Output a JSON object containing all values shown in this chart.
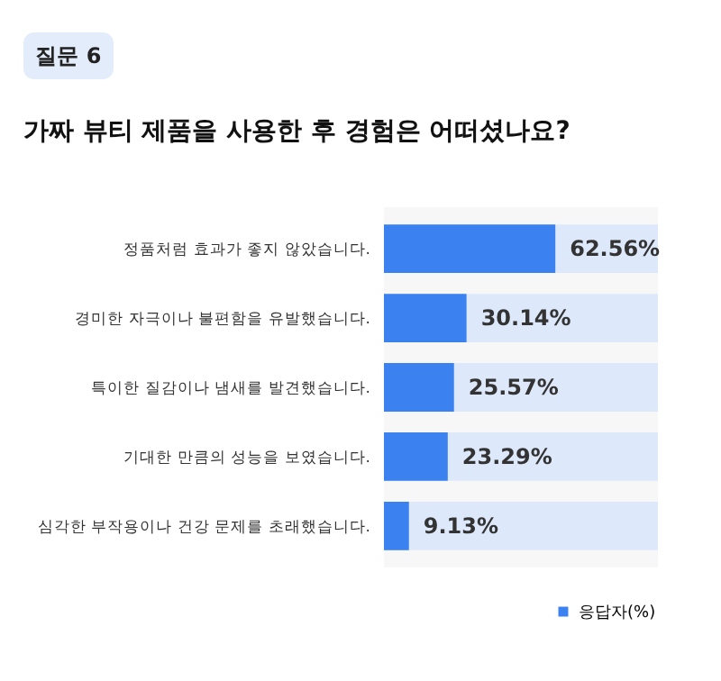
{
  "chart_data": {
    "type": "bar",
    "orientation": "horizontal",
    "title": "가짜 뷰티 제품을 사용한 후 경험은 어떠셨나요?",
    "annotations": [
      "질문 6"
    ],
    "categories": [
      "정품처럼 효과가 좋지 않았습니다.",
      "경미한 자극이나 불편함을 유발했습니다.",
      "특이한 질감이나 냄새를 발견했습니다.",
      "기대한 만큼의 성능을 보였습니다.",
      "심각한 부작용이나 건강 문제를 초래했습니다."
    ],
    "series": [
      {
        "name": "응답자(%)",
        "color": "#3b82f0",
        "values": [
          62.56,
          30.14,
          25.57,
          23.29,
          9.13
        ],
        "value_labels": [
          "62.56%",
          "30.14%",
          "25.57%",
          "23.29%",
          "9.13%"
        ]
      }
    ],
    "xlim": [
      0,
      100
    ],
    "tick_labels": "y",
    "grid": false,
    "legend": "bottom"
  }
}
